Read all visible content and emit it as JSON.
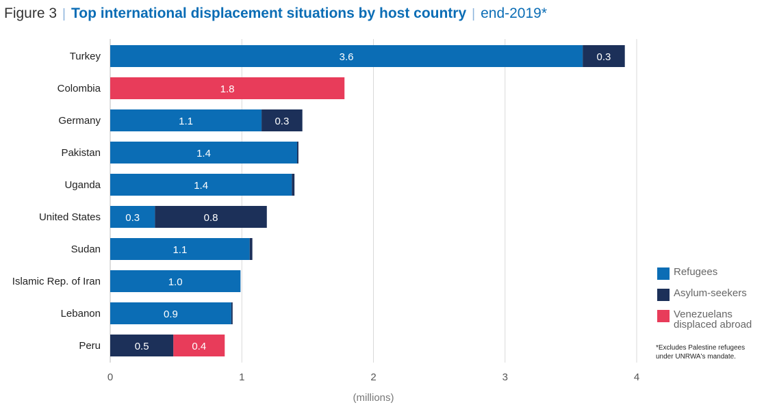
{
  "header": {
    "figure_label": "Figure 3",
    "title": "Top international displacement situations by host country",
    "subtitle": "end-2019*"
  },
  "footnote": "*Excludes Palestine refugees\n under UNRWA's mandate.",
  "colors": {
    "refugees": "#0b6db5",
    "asylum": "#1c3059",
    "venezuelans": "#e83c5a"
  },
  "chart_data": {
    "type": "bar",
    "orientation": "horizontal",
    "stacked": true,
    "xlabel": "(millions)",
    "xlim": [
      0,
      4
    ],
    "xticks": [
      "0",
      "1",
      "2",
      "3",
      "4"
    ],
    "grid": "vertical",
    "legend_position": "right",
    "categories": [
      "Turkey",
      "Colombia",
      "Germany",
      "Pakistan",
      "Uganda",
      "United States",
      "Sudan",
      "Islamic Rep. of Iran",
      "Lebanon",
      "Peru"
    ],
    "series": [
      {
        "name": "Refugees",
        "color": "#0b6db5",
        "values": [
          3.59,
          0.0,
          1.15,
          1.42,
          1.38,
          0.34,
          1.06,
          0.99,
          0.92,
          0.0
        ]
      },
      {
        "name": "Asylum-seekers",
        "color": "#1c3059",
        "values": [
          0.32,
          0.0,
          0.31,
          0.01,
          0.02,
          0.85,
          0.02,
          0.0,
          0.01,
          0.48
        ]
      },
      {
        "name": "Venezuelans displaced abroad",
        "color": "#e83c5a",
        "values": [
          0.0,
          1.78,
          0.0,
          0.0,
          0.0,
          0.0,
          0.0,
          0.0,
          0.0,
          0.39
        ]
      }
    ],
    "data_labels": [
      [
        "3.6",
        "",
        "1.1",
        "1.4",
        "1.4",
        "0.3",
        "1.1",
        "1.0",
        "0.9",
        ""
      ],
      [
        "0.3",
        "",
        "0.3",
        "",
        "",
        "0.8",
        "",
        "",
        "",
        "0.5"
      ],
      [
        "",
        "1.8",
        "",
        "",
        "",
        "",
        "",
        "",
        "",
        "0.4"
      ]
    ]
  }
}
